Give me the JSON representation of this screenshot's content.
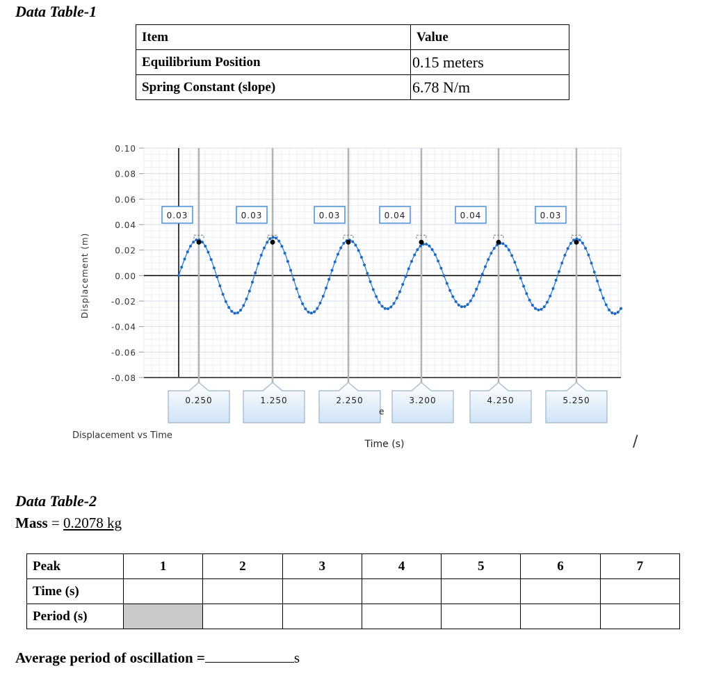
{
  "table1": {
    "title": "Data Table-1",
    "headers": {
      "item": "Item",
      "value": "Value"
    },
    "rows": [
      {
        "item": "Equilibrium  Position",
        "value": "0.15 meters"
      },
      {
        "item": "Spring   Constant (slope)",
        "value": "6.78 N/m"
      }
    ]
  },
  "chart_data": {
    "type": "line",
    "title": "Displacement vs Time",
    "xlabel": "Time (s)",
    "ylabel": "Displacement (m)",
    "ylim": [
      -0.08,
      0.1
    ],
    "yticks": [
      "0.10",
      "0.08",
      "0.06",
      "0.04",
      "0.02",
      "0.00",
      "-0.02",
      "-0.04",
      "-0.06",
      "-0.08"
    ],
    "peak_labels": [
      "0.03",
      "0.03",
      "0.03",
      "0.04",
      "0.04",
      "0.03"
    ],
    "time_markers": [
      "0.250",
      "1.250",
      "2.250",
      "3.200",
      "4.250",
      "5.250"
    ],
    "stray_label": "e",
    "series": [
      {
        "amplitude": 0.035,
        "period": 1.0
      }
    ]
  },
  "table2": {
    "title": "Data Table-2",
    "mass_label": "Mass",
    "mass_eq": " = ",
    "mass_value": "0.2078 kg",
    "header_label": "Peak",
    "peaks": [
      "1",
      "2",
      "3",
      "4",
      "5",
      "6",
      "7"
    ],
    "row_labels": [
      "Time (s)",
      "Period (s)"
    ]
  },
  "average": {
    "label": "Average period  of oscillation  =",
    "unit": "s"
  },
  "stray_slash": "/"
}
